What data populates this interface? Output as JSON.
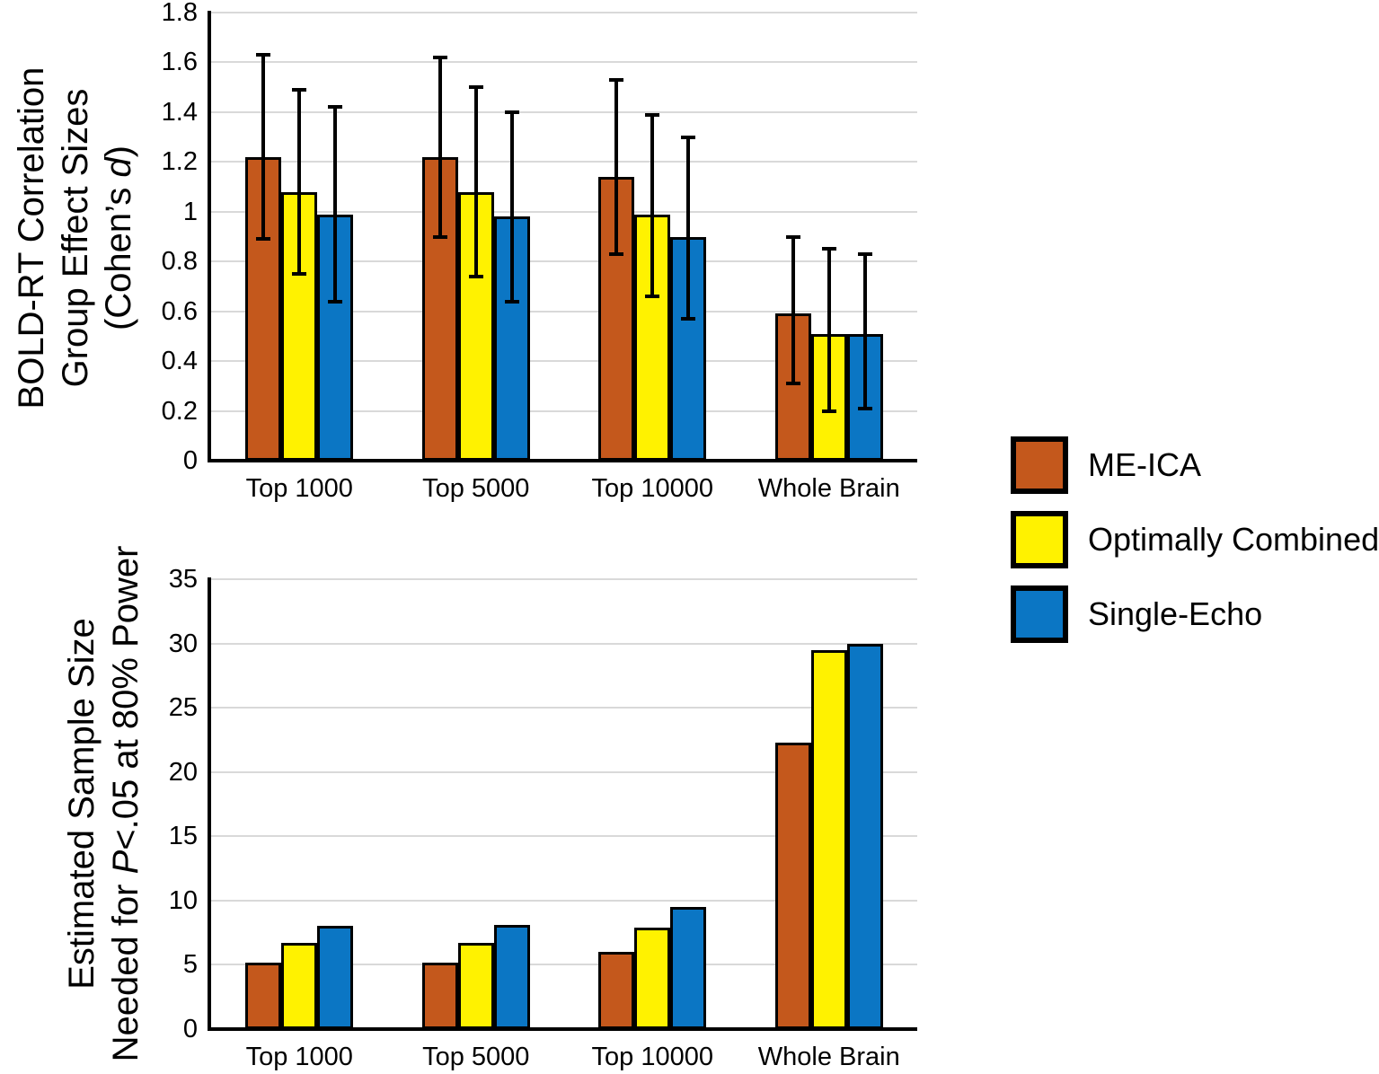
{
  "figure": {
    "background_color": "#FFFFFF"
  },
  "colors": {
    "me_ica": "#C4581C",
    "optimally_combined": "#FFF200",
    "single_echo": "#0B76C4",
    "gridline": "#D9D9D9",
    "axis": "#000000",
    "error_bar": "#000000"
  },
  "legend": {
    "position": "right",
    "items": [
      {
        "label": "ME-ICA",
        "color": "#C4581C"
      },
      {
        "label": "Optimally Combined",
        "color": "#FFF200"
      },
      {
        "label": "Single-Echo",
        "color": "#0B76C4"
      }
    ]
  },
  "chart_data": [
    {
      "id": "effect-sizes",
      "type": "bar",
      "title": "",
      "xlabel": "",
      "ylabel": "BOLD-RT Correlation Group Effect Sizes (Cohen's d)",
      "ylabel_lines": [
        [
          {
            "text": "BOLD-RT Correlation",
            "italic": false
          }
        ],
        [
          {
            "text": "Group Effect Sizes",
            "italic": false
          }
        ],
        [
          {
            "text": "(Cohen’s ",
            "italic": false
          },
          {
            "text": "d",
            "italic": true
          },
          {
            "text": ")",
            "italic": false
          }
        ]
      ],
      "categories": [
        "Top 1000",
        "Top 5000",
        "Top 10000",
        "Whole Brain"
      ],
      "series": [
        {
          "name": "ME-ICA",
          "color": "#C4581C",
          "values": [
            1.22,
            1.22,
            1.14,
            0.59
          ],
          "error_low": [
            0.89,
            0.9,
            0.83,
            0.31
          ],
          "error_high": [
            1.63,
            1.62,
            1.53,
            0.9
          ]
        },
        {
          "name": "Optimally Combined",
          "color": "#FFF200",
          "values": [
            1.08,
            1.08,
            0.99,
            0.51
          ],
          "error_low": [
            0.75,
            0.74,
            0.66,
            0.2
          ],
          "error_high": [
            1.49,
            1.5,
            1.39,
            0.85
          ]
        },
        {
          "name": "Single-Echo",
          "color": "#0B76C4",
          "values": [
            0.99,
            0.98,
            0.9,
            0.51
          ],
          "error_low": [
            0.64,
            0.64,
            0.57,
            0.21
          ],
          "error_high": [
            1.42,
            1.4,
            1.3,
            0.83
          ]
        }
      ],
      "ylim": [
        0,
        1.8
      ],
      "ytick_step": 0.2,
      "yticks": [
        "0",
        "0.2",
        "0.4",
        "0.6",
        "0.8",
        "1",
        "1.2",
        "1.4",
        "1.6",
        "1.8"
      ],
      "grid": true,
      "error_bars": true,
      "legend_position": "right"
    },
    {
      "id": "sample-size",
      "type": "bar",
      "title": "",
      "xlabel": "",
      "ylabel": "Estimated Sample Size Needed for P<.05 at 80% Power",
      "ylabel_lines": [
        [
          {
            "text": "Estimated Sample Size",
            "italic": false
          }
        ],
        [
          {
            "text": "Needed for ",
            "italic": false
          },
          {
            "text": "P",
            "italic": true
          },
          {
            "text": "<.05 at 80% Power",
            "italic": false
          }
        ]
      ],
      "categories": [
        "Top 1000",
        "Top 5000",
        "Top 10000",
        "Whole Brain"
      ],
      "series": [
        {
          "name": "ME-ICA",
          "color": "#C4581C",
          "values": [
            5.2,
            5.2,
            6.0,
            22.3
          ]
        },
        {
          "name": "Optimally Combined",
          "color": "#FFF200",
          "values": [
            6.7,
            6.7,
            7.9,
            29.5
          ]
        },
        {
          "name": "Single-Echo",
          "color": "#0B76C4",
          "values": [
            8.0,
            8.1,
            9.5,
            30.0
          ]
        }
      ],
      "ylim": [
        0,
        35
      ],
      "ytick_step": 5,
      "yticks": [
        "0",
        "5",
        "10",
        "15",
        "20",
        "25",
        "30",
        "35"
      ],
      "grid": true,
      "error_bars": false,
      "legend_position": "right"
    }
  ]
}
